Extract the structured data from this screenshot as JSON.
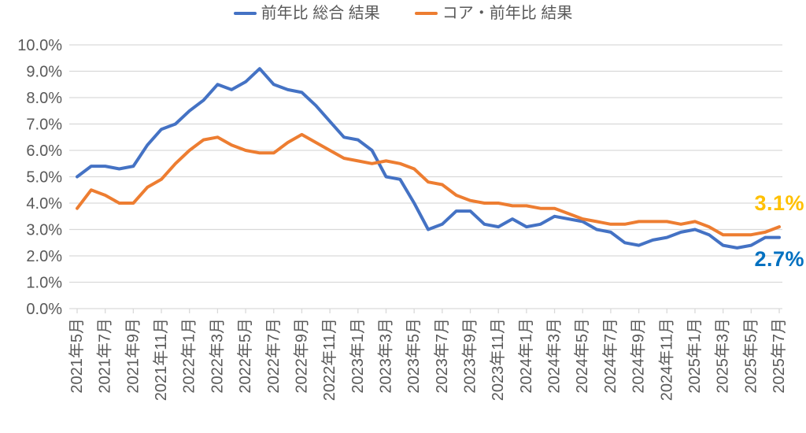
{
  "chart_data": {
    "type": "line",
    "title": "",
    "legend_position": "top",
    "grid": true,
    "ylim": [
      0,
      10
    ],
    "y_tick_labels": [
      "0.0%",
      "1.0%",
      "2.0%",
      "3.0%",
      "4.0%",
      "5.0%",
      "6.0%",
      "7.0%",
      "8.0%",
      "9.0%",
      "10.0%"
    ],
    "x_tick_labels": [
      "2021年5月",
      "2021年7月",
      "2021年9月",
      "2021年11月",
      "2022年1月",
      "2022年3月",
      "2022年5月",
      "2022年7月",
      "2022年9月",
      "2022年11月",
      "2023年1月",
      "2023年3月",
      "2023年5月",
      "2023年7月",
      "2023年9月",
      "2023年11月",
      "2024年1月",
      "2024年3月",
      "2024年5月",
      "2024年7月",
      "2024年9月",
      "2024年11月",
      "2025年1月",
      "2025年3月",
      "2025年5月",
      "2025年7月"
    ],
    "x_categories": [
      "2021年5月",
      "2021年6月",
      "2021年7月",
      "2021年8月",
      "2021年9月",
      "2021年10月",
      "2021年11月",
      "2021年12月",
      "2022年1月",
      "2022年2月",
      "2022年3月",
      "2022年4月",
      "2022年5月",
      "2022年6月",
      "2022年7月",
      "2022年8月",
      "2022年9月",
      "2022年10月",
      "2022年11月",
      "2022年12月",
      "2023年1月",
      "2023年2月",
      "2023年3月",
      "2023年4月",
      "2023年5月",
      "2023年6月",
      "2023年7月",
      "2023年8月",
      "2023年9月",
      "2023年10月",
      "2023年11月",
      "2023年12月",
      "2024年1月",
      "2024年2月",
      "2024年3月",
      "2024年4月",
      "2024年5月",
      "2024年6月",
      "2024年7月",
      "2024年8月",
      "2024年9月",
      "2024年10月",
      "2024年11月",
      "2024年12月",
      "2025年1月",
      "2025年2月",
      "2025年3月",
      "2025年4月",
      "2025年5月",
      "2025年6月",
      "2025年7月"
    ],
    "series": [
      {
        "name": "前年比 総合 結果",
        "color": "#4472C4",
        "values": [
          5.0,
          5.4,
          5.4,
          5.3,
          5.4,
          6.2,
          6.8,
          7.0,
          7.5,
          7.9,
          8.5,
          8.3,
          8.6,
          9.1,
          8.5,
          8.3,
          8.2,
          7.7,
          7.1,
          6.5,
          6.4,
          6.0,
          5.0,
          4.9,
          4.0,
          3.0,
          3.2,
          3.7,
          3.7,
          3.2,
          3.1,
          3.4,
          3.1,
          3.2,
          3.5,
          3.4,
          3.3,
          3.0,
          2.9,
          2.5,
          2.4,
          2.6,
          2.7,
          2.9,
          3.0,
          2.8,
          2.4,
          2.3,
          2.4,
          2.7,
          2.7
        ]
      },
      {
        "name": "コア・前年比 結果",
        "color": "#ED7D31",
        "values": [
          3.8,
          4.5,
          4.3,
          4.0,
          4.0,
          4.6,
          4.9,
          5.5,
          6.0,
          6.4,
          6.5,
          6.2,
          6.0,
          5.9,
          5.9,
          6.3,
          6.6,
          6.3,
          6.0,
          5.7,
          5.6,
          5.5,
          5.6,
          5.5,
          5.3,
          4.8,
          4.7,
          4.3,
          4.1,
          4.0,
          4.0,
          3.9,
          3.9,
          3.8,
          3.8,
          3.6,
          3.4,
          3.3,
          3.2,
          3.2,
          3.3,
          3.3,
          3.3,
          3.2,
          3.3,
          3.1,
          2.8,
          2.8,
          2.8,
          2.9,
          3.1
        ]
      }
    ],
    "end_labels": [
      {
        "text": "3.1%",
        "color": "#FFC000",
        "series": "コア・前年比 結果"
      },
      {
        "text": "2.7%",
        "color": "#0070C0",
        "series": "前年比 総合 結果"
      }
    ],
    "colors": {
      "gridline": "#D9D9D9",
      "axis_text": "#595959",
      "legend_text": "#595959"
    }
  }
}
